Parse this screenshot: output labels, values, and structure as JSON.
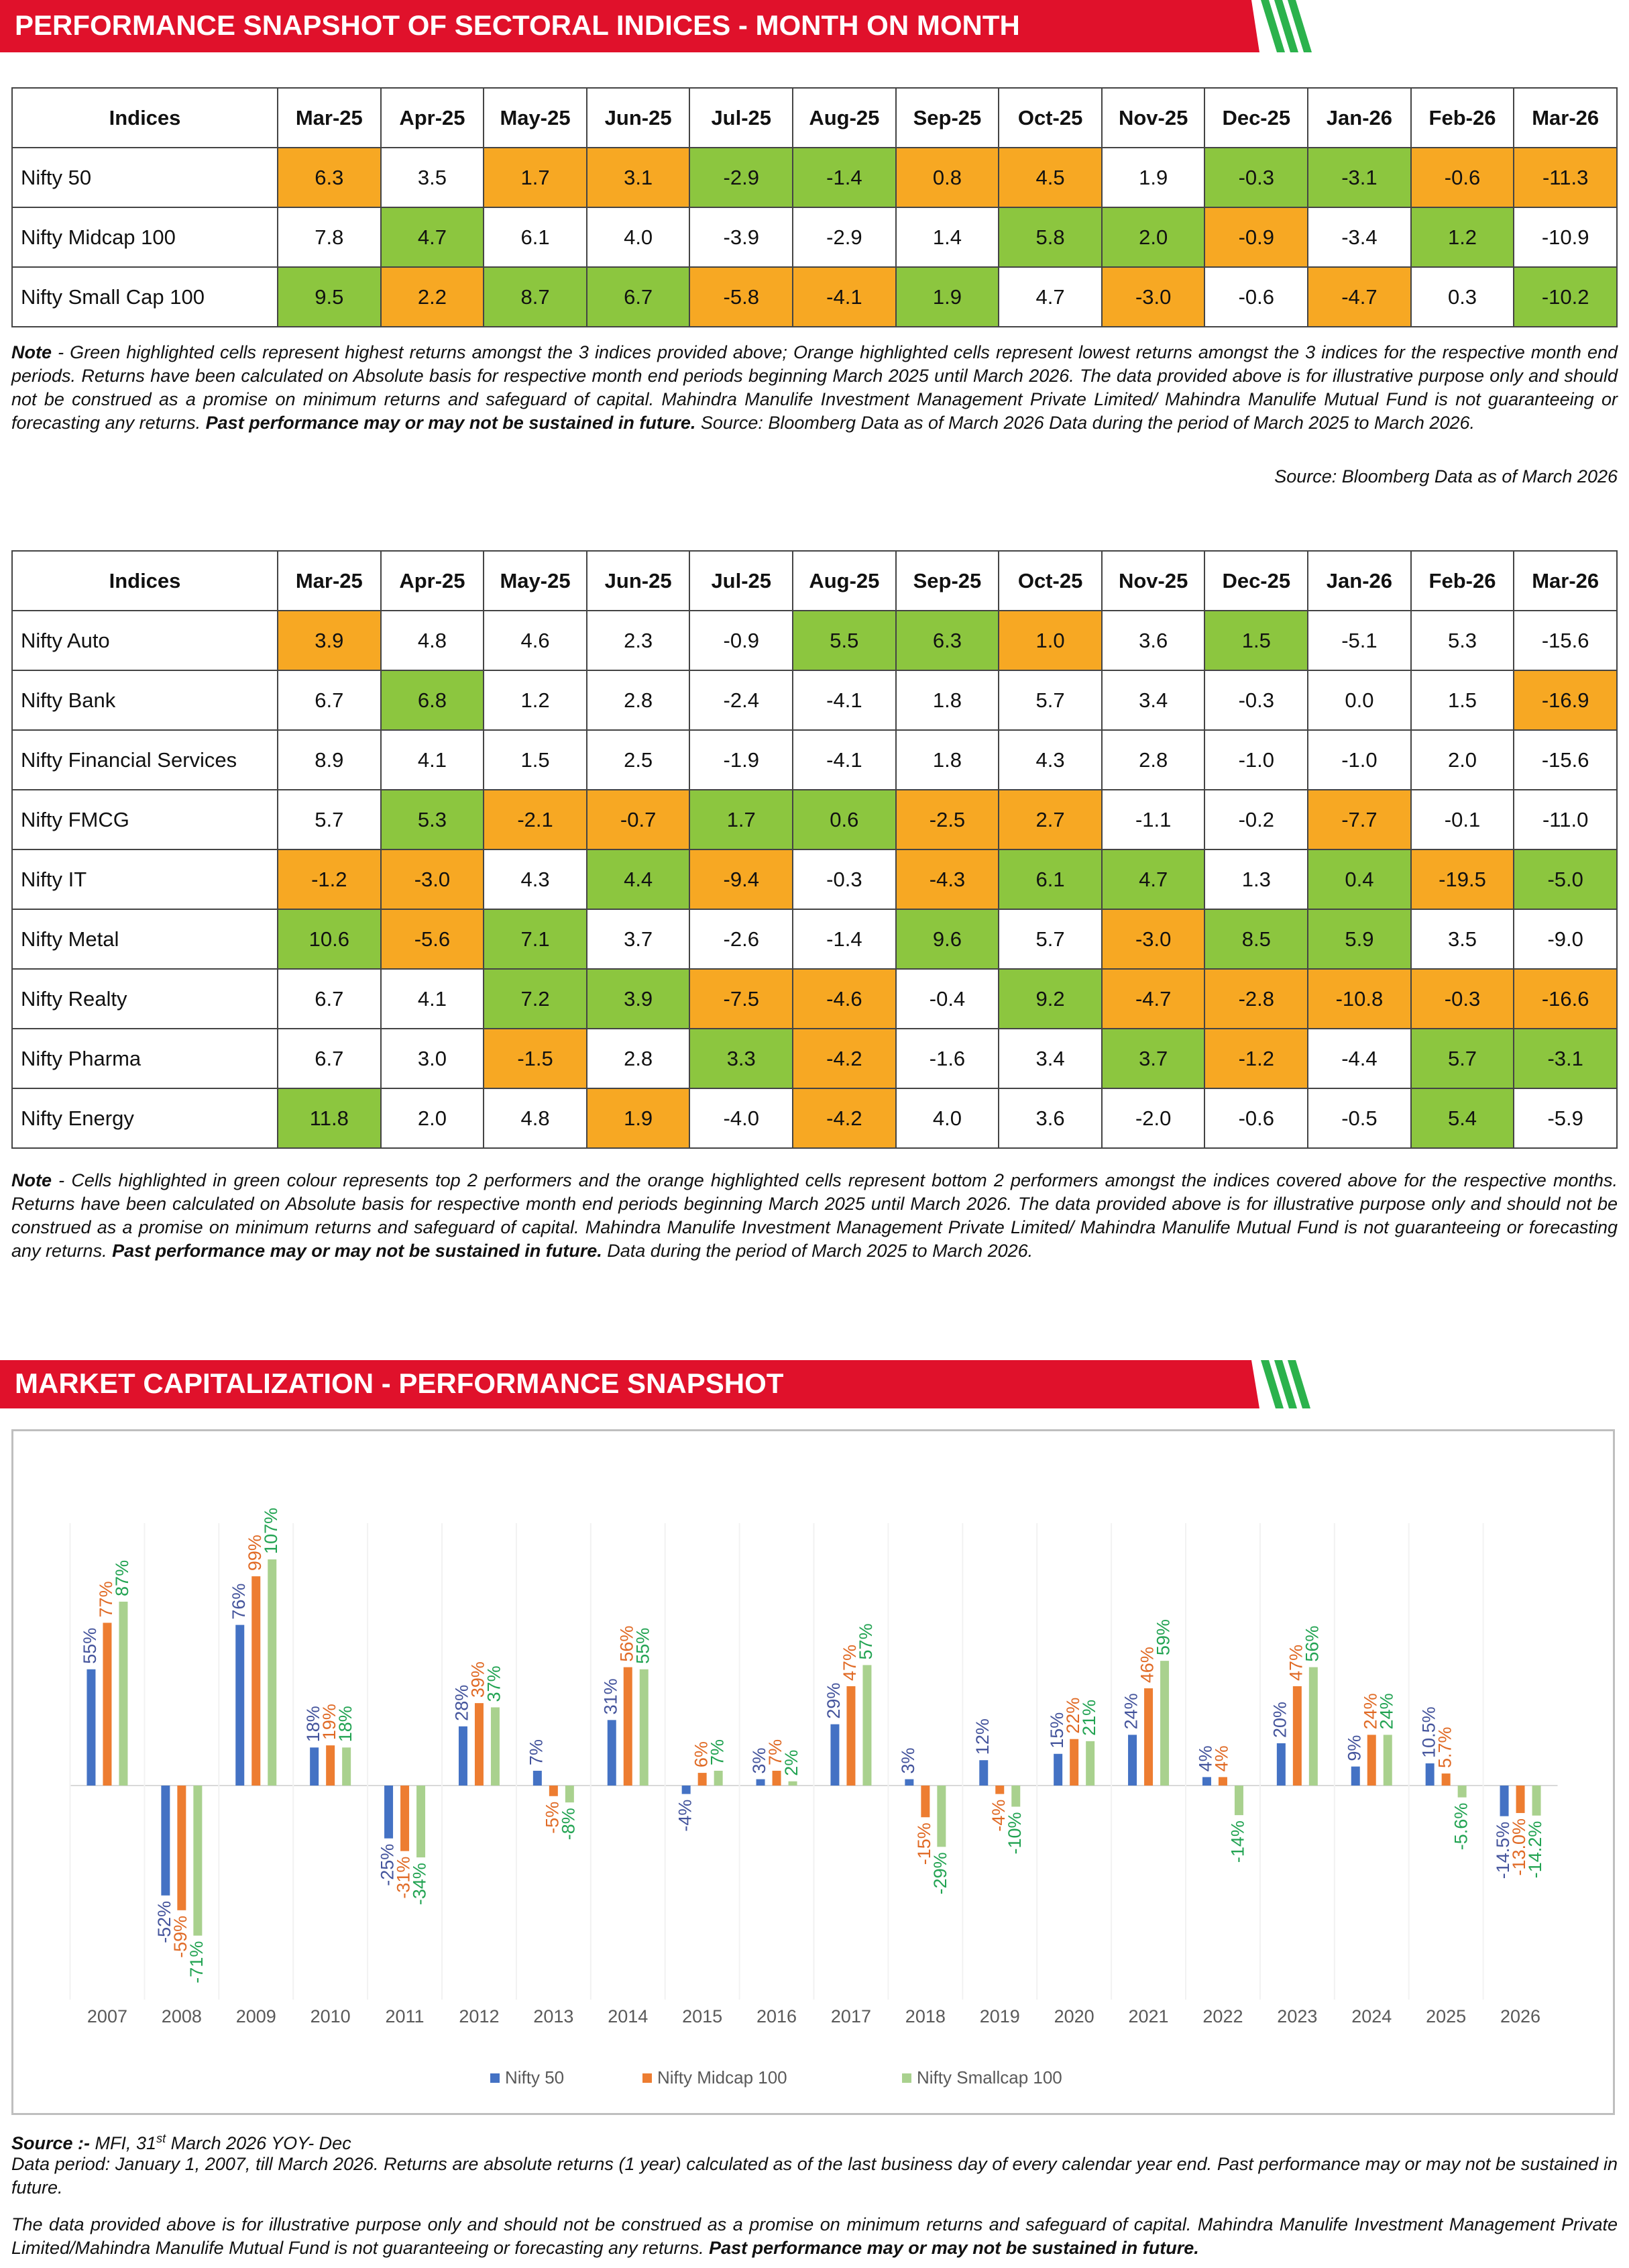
{
  "section1": {
    "title": "PERFORMANCE SNAPSHOT OF SECTORAL INDICES - MONTH ON MONTH",
    "table": {
      "columns": [
        "Indices",
        "Mar-25",
        "Apr-25",
        "May-25",
        "Jun-25",
        "Jul-25",
        "Aug-25",
        "Sep-25",
        "Oct-25",
        "Nov-25",
        "Dec-25",
        "Jan-26",
        "Feb-26",
        "Mar-26"
      ],
      "rows": [
        {
          "name": "Nifty 50",
          "cells": [
            "6.3",
            "3.5",
            "1.7",
            "3.1",
            "-2.9",
            "-1.4",
            "0.8",
            "4.5",
            "1.9",
            "-0.3",
            "-3.1",
            "-0.6",
            "-11.3"
          ],
          "fills": [
            "#f7a823",
            null,
            "#f7a823",
            "#f7a823",
            "#8cc63f",
            "#8cc63f",
            "#f7a823",
            "#f7a823",
            null,
            "#8cc63f",
            "#8cc63f",
            "#f7a823",
            "#f7a823"
          ]
        },
        {
          "name": "Nifty Midcap 100",
          "cells": [
            "7.8",
            "4.7",
            "6.1",
            "4.0",
            "-3.9",
            "-2.9",
            "1.4",
            "5.8",
            "2.0",
            "-0.9",
            "-3.4",
            "1.2",
            "-10.9"
          ],
          "fills": [
            null,
            "#8cc63f",
            null,
            null,
            null,
            null,
            null,
            "#8cc63f",
            "#8cc63f",
            "#f7a823",
            null,
            "#8cc63f",
            null
          ]
        },
        {
          "name": "Nifty Small Cap 100",
          "cells": [
            "9.5",
            "2.2",
            "8.7",
            "6.7",
            "-5.8",
            "-4.1",
            "1.9",
            "4.7",
            "-3.0",
            "-0.6",
            "-4.7",
            "0.3",
            "-10.2"
          ],
          "fills": [
            "#8cc63f",
            "#f7a823",
            "#8cc63f",
            "#8cc63f",
            "#f7a823",
            "#f7a823",
            "#8cc63f",
            null,
            "#f7a823",
            null,
            "#f7a823",
            null,
            "#8cc63f"
          ]
        }
      ]
    },
    "note": [
      {
        "text": "Note",
        "bold": true
      },
      {
        "text": " - Green highlighted cells represent highest returns amongst the 3 indices provided above; Orange highlighted cells represent lowest returns amongst the 3 indices for the respective month end periods. Returns have been calculated on Absolute basis for respective month end periods beginning March 2025 until March 2026. The data provided above is for illustrative purpose only and should not be construed as a promise on minimum returns and safeguard of capital. Mahindra Manulife Investment Management Private Limited/ Mahindra Manulife Mutual Fund is not guaranteeing or forecasting any returns. "
      },
      {
        "text": "Past performance may or may not be sustained in future.",
        "bold": true
      },
      {
        "text": " Source: Bloomberg Data as of March 2026 Data during the period of March 2025 to March 2026."
      }
    ],
    "source": "Source: Bloomberg Data as of March 2026"
  },
  "section2": {
    "table": {
      "columns": [
        "Indices",
        "Mar-25",
        "Apr-25",
        "May-25",
        "Jun-25",
        "Jul-25",
        "Aug-25",
        "Sep-25",
        "Oct-25",
        "Nov-25",
        "Dec-25",
        "Jan-26",
        "Feb-26",
        "Mar-26"
      ],
      "rows": [
        {
          "name": "Nifty Auto",
          "cells": [
            "3.9",
            "4.8",
            "4.6",
            "2.3",
            "-0.9",
            "5.5",
            "6.3",
            "1.0",
            "3.6",
            "1.5",
            "-5.1",
            "5.3",
            "-15.6"
          ],
          "fills": [
            "#f7a823",
            null,
            null,
            null,
            null,
            "#8cc63f",
            "#8cc63f",
            "#f7a823",
            null,
            "#8cc63f",
            null,
            null,
            null
          ]
        },
        {
          "name": "Nifty Bank",
          "cells": [
            "6.7",
            "6.8",
            "1.2",
            "2.8",
            "-2.4",
            "-4.1",
            "1.8",
            "5.7",
            "3.4",
            "-0.3",
            "0.0",
            "1.5",
            "-16.9"
          ],
          "fills": [
            null,
            "#8cc63f",
            null,
            null,
            null,
            null,
            null,
            null,
            null,
            null,
            null,
            null,
            "#f7a823"
          ]
        },
        {
          "name": "Nifty Financial Services",
          "cells": [
            "8.9",
            "4.1",
            "1.5",
            "2.5",
            "-1.9",
            "-4.1",
            "1.8",
            "4.3",
            "2.8",
            "-1.0",
            "-1.0",
            "2.0",
            "-15.6"
          ],
          "fills": [
            null,
            null,
            null,
            null,
            null,
            null,
            null,
            null,
            null,
            null,
            null,
            null,
            null
          ]
        },
        {
          "name": "Nifty FMCG",
          "cells": [
            "5.7",
            "5.3",
            "-2.1",
            "-0.7",
            "1.7",
            "0.6",
            "-2.5",
            "2.7",
            "-1.1",
            "-0.2",
            "-7.7",
            "-0.1",
            "-11.0"
          ],
          "fills": [
            null,
            "#8cc63f",
            "#f7a823",
            "#f7a823",
            "#8cc63f",
            "#8cc63f",
            "#f7a823",
            "#f7a823",
            null,
            null,
            "#f7a823",
            null,
            null
          ]
        },
        {
          "name": "Nifty IT",
          "cells": [
            "-1.2",
            "-3.0",
            "4.3",
            "4.4",
            "-9.4",
            "-0.3",
            "-4.3",
            "6.1",
            "4.7",
            "1.3",
            "0.4",
            "-19.5",
            "-5.0"
          ],
          "fills": [
            "#f7a823",
            "#f7a823",
            null,
            "#8cc63f",
            "#f7a823",
            null,
            "#f7a823",
            "#8cc63f",
            "#8cc63f",
            null,
            "#8cc63f",
            "#f7a823",
            "#8cc63f"
          ]
        },
        {
          "name": "Nifty Metal",
          "cells": [
            "10.6",
            "-5.6",
            "7.1",
            "3.7",
            "-2.6",
            "-1.4",
            "9.6",
            "5.7",
            "-3.0",
            "8.5",
            "5.9",
            "3.5",
            "-9.0"
          ],
          "fills": [
            "#8cc63f",
            "#f7a823",
            "#8cc63f",
            null,
            null,
            null,
            "#8cc63f",
            null,
            "#f7a823",
            "#8cc63f",
            "#8cc63f",
            null,
            null
          ]
        },
        {
          "name": "Nifty Realty",
          "cells": [
            "6.7",
            "4.1",
            "7.2",
            "3.9",
            "-7.5",
            "-4.6",
            "-0.4",
            "9.2",
            "-4.7",
            "-2.8",
            "-10.8",
            "-0.3",
            "-16.6"
          ],
          "fills": [
            null,
            null,
            "#8cc63f",
            "#8cc63f",
            "#f7a823",
            "#f7a823",
            null,
            "#8cc63f",
            "#f7a823",
            "#f7a823",
            "#f7a823",
            "#f7a823",
            "#f7a823"
          ]
        },
        {
          "name": "Nifty Pharma",
          "cells": [
            "6.7",
            "3.0",
            "-1.5",
            "2.8",
            "3.3",
            "-4.2",
            "-1.6",
            "3.4",
            "3.7",
            "-1.2",
            "-4.4",
            "5.7",
            "-3.1"
          ],
          "fills": [
            null,
            null,
            "#f7a823",
            null,
            "#8cc63f",
            "#f7a823",
            null,
            null,
            "#8cc63f",
            "#f7a823",
            null,
            "#8cc63f",
            "#8cc63f"
          ]
        },
        {
          "name": "Nifty Energy",
          "cells": [
            "11.8",
            "2.0",
            "4.8",
            "1.9",
            "-4.0",
            "-4.2",
            "4.0",
            "3.6",
            "-2.0",
            "-0.6",
            "-0.5",
            "5.4",
            "-5.9"
          ],
          "fills": [
            "#8cc63f",
            null,
            null,
            "#f7a823",
            null,
            "#f7a823",
            null,
            null,
            null,
            null,
            null,
            "#8cc63f",
            null
          ]
        }
      ]
    },
    "note": [
      {
        "text": "Note",
        "bold": true
      },
      {
        "text": " - Cells highlighted in green colour represents top 2 performers and the orange highlighted cells represent bottom 2 performers amongst the indices covered above for the respective months. Returns have been calculated on Absolute basis for respective month end periods beginning March 2025 until March 2026. The data provided above is for illustrative purpose only and should not be construed as a promise on minimum returns and safeguard of capital. Mahindra Manulife Investment Management Private Limited/ Mahindra Manulife Mutual Fund is not guaranteeing or forecasting any returns. "
      },
      {
        "text": "Past performance may or may not be sustained in future.",
        "bold": true
      },
      {
        "text": " Data during the period of March 2025 to March 2026."
      }
    ]
  },
  "chart_data": {
    "type": "bar",
    "title": "MARKET CAPITALIZATION - PERFORMANCE SNAPSHOT",
    "categories": [
      "2007",
      "2008",
      "2009",
      "2010",
      "2011",
      "2012",
      "2013",
      "2014",
      "2015",
      "2016",
      "2017",
      "2018",
      "2019",
      "2020",
      "2021",
      "2022",
      "2023",
      "2024",
      "2025",
      "2026"
    ],
    "series": [
      {
        "name": "Nifty 50",
        "color": "#4472c4",
        "label_color": "#44549c",
        "values": [
          55,
          -52,
          76,
          18,
          -25,
          28,
          7,
          31,
          -4,
          3,
          29,
          3,
          12,
          15,
          24,
          4,
          20,
          9,
          10.5,
          -14.5
        ],
        "value_labels": [
          "55%",
          "-52%",
          "76%",
          "18%",
          "-25%",
          "28%",
          "7%",
          "31%",
          "-4%",
          "3%",
          "29%",
          "3%",
          "12%",
          "15%",
          "24%",
          "4%",
          "20%",
          "9%",
          "10.5%",
          "-14.5%"
        ]
      },
      {
        "name": "Nifty Midcap 100",
        "color": "#ed7d31",
        "label_color": "#e06a25",
        "values": [
          77,
          -59,
          99,
          19,
          -31,
          39,
          -5,
          56,
          6,
          7,
          47,
          -15,
          -4,
          22,
          46,
          4,
          47,
          24,
          5.7,
          -13.0
        ],
        "value_labels": [
          "77%",
          "-59%",
          "99%",
          "19%",
          "-31%",
          "39%",
          "-5%",
          "56%",
          "6%",
          "7%",
          "47%",
          "-15%",
          "-4%",
          "22%",
          "46%",
          "4%",
          "47%",
          "24%",
          "5.7%",
          "-13.0%"
        ]
      },
      {
        "name": "Nifty Smallcap 100",
        "color": "#a9d18e",
        "label_color": "#22a352",
        "values": [
          87,
          -71,
          107,
          18,
          -34,
          37,
          -8,
          55,
          7,
          2,
          57,
          -29,
          -10,
          21,
          59,
          -14,
          56,
          24,
          -5.6,
          -14.2
        ],
        "value_labels": [
          "87%",
          "-71%",
          "107%",
          "18%",
          "-34%",
          "37%",
          "-8%",
          "55%",
          "7%",
          "2%",
          "57%",
          "-29%",
          "-10%",
          "21%",
          "59%",
          "-14%",
          "56%",
          "24%",
          "-5.6%",
          "-14.2%"
        ]
      }
    ]
  },
  "footer": {
    "lines": [
      [
        {
          "text": "Source :-",
          "bold": true
        },
        {
          "text": " MFI, 31"
        },
        {
          "text": "st",
          "sup": true
        },
        {
          "text": " March 2026 YOY- Dec"
        }
      ],
      [
        {
          "text": "Data period: January 1, 2007, till March 2026. Returns are absolute returns (1 year) calculated as of the last business day of every calendar year end. Past performance may or may not be sustained in future."
        }
      ],
      [
        {
          "text": "The data provided above is for illustrative purpose only and should not be construed as a promise on minimum returns and safeguard of capital. Mahindra Manulife Investment Management Private Limited/Mahindra Manulife Mutual Fund is not guaranteeing or forecasting any returns. "
        },
        {
          "text": "Past performance may or may not be sustained in future.",
          "bold": true
        }
      ]
    ]
  }
}
